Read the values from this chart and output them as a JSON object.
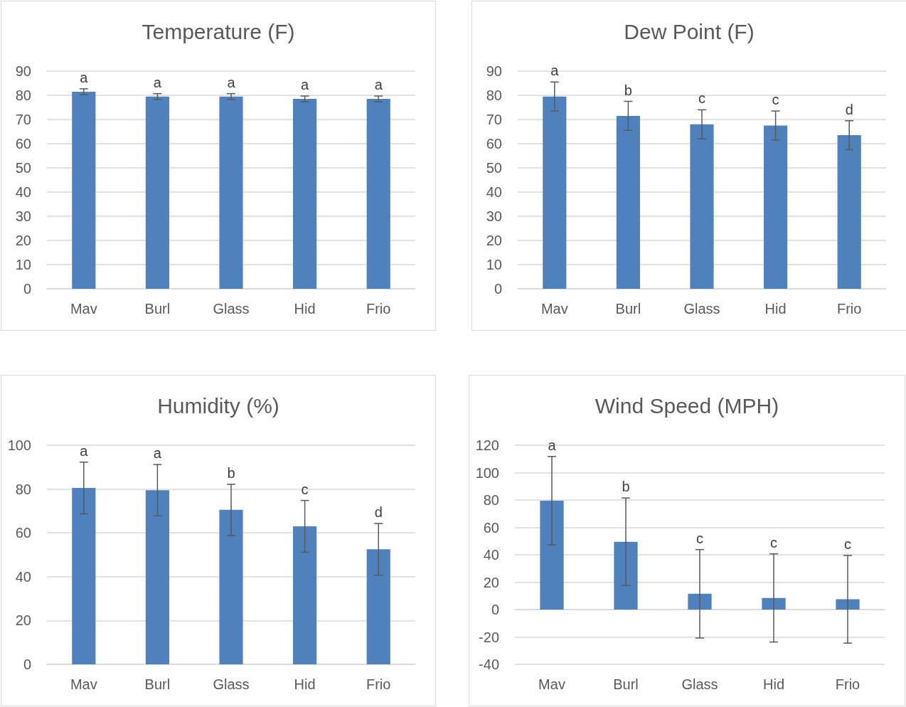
{
  "chart_data": [
    {
      "type": "bar",
      "title": "Temperature (F)",
      "categories": [
        "Mav",
        "Burl",
        "Glass",
        "Hid",
        "Frio"
      ],
      "values": [
        81.5,
        79.5,
        79.5,
        78.5,
        78.5
      ],
      "errors": [
        1.2,
        1.2,
        1.2,
        1.2,
        1.2
      ],
      "color": "#4f81bd",
      "ylim": [
        0,
        90
      ],
      "yticks": [
        0,
        10,
        20,
        30,
        40,
        50,
        60,
        70,
        80,
        90
      ],
      "grid": "y",
      "annotations": [
        "a",
        "a",
        "a",
        "a",
        "a"
      ]
    },
    {
      "type": "bar",
      "title": "Dew Point (F)",
      "categories": [
        "Mav",
        "Burl",
        "Glass",
        "Hid",
        "Frio"
      ],
      "values": [
        79.5,
        71.5,
        68,
        67.5,
        63.5
      ],
      "errors": [
        6,
        6,
        6,
        6,
        6
      ],
      "color": "#4f81bd",
      "ylim": [
        0,
        90
      ],
      "yticks": [
        0,
        10,
        20,
        30,
        40,
        50,
        60,
        70,
        80,
        90
      ],
      "grid": "y",
      "annotations": [
        "a",
        "b",
        "c",
        "c",
        "d"
      ]
    },
    {
      "type": "bar",
      "title": "Humidity (%)",
      "categories": [
        "Mav",
        "Burl",
        "Glass",
        "Hid",
        "Frio"
      ],
      "values": [
        80.5,
        79.5,
        70.5,
        63,
        52.5
      ],
      "errors": [
        11.8,
        11.7,
        11.7,
        11.8,
        11.8
      ],
      "color": "#4f81bd",
      "ylim": [
        0,
        100
      ],
      "yticks": [
        0,
        20,
        40,
        60,
        80,
        100
      ],
      "grid": "y",
      "annotations": [
        "a",
        "a",
        "b",
        "c",
        "d"
      ]
    },
    {
      "type": "bar",
      "title": "Wind Speed (MPH)",
      "categories": [
        "Mav",
        "Burl",
        "Glass",
        "Hid",
        "Frio"
      ],
      "values": [
        79.5,
        49.5,
        11.5,
        8.5,
        7.5
      ],
      "errors": [
        32.3,
        32,
        32.3,
        32.2,
        32
      ],
      "color": "#4f81bd",
      "ylim": [
        -40,
        120
      ],
      "yticks": [
        -40,
        -20,
        0,
        20,
        40,
        60,
        80,
        100,
        120
      ],
      "grid": "y",
      "annotations": [
        "a",
        "b",
        "c",
        "c",
        "c"
      ]
    }
  ]
}
